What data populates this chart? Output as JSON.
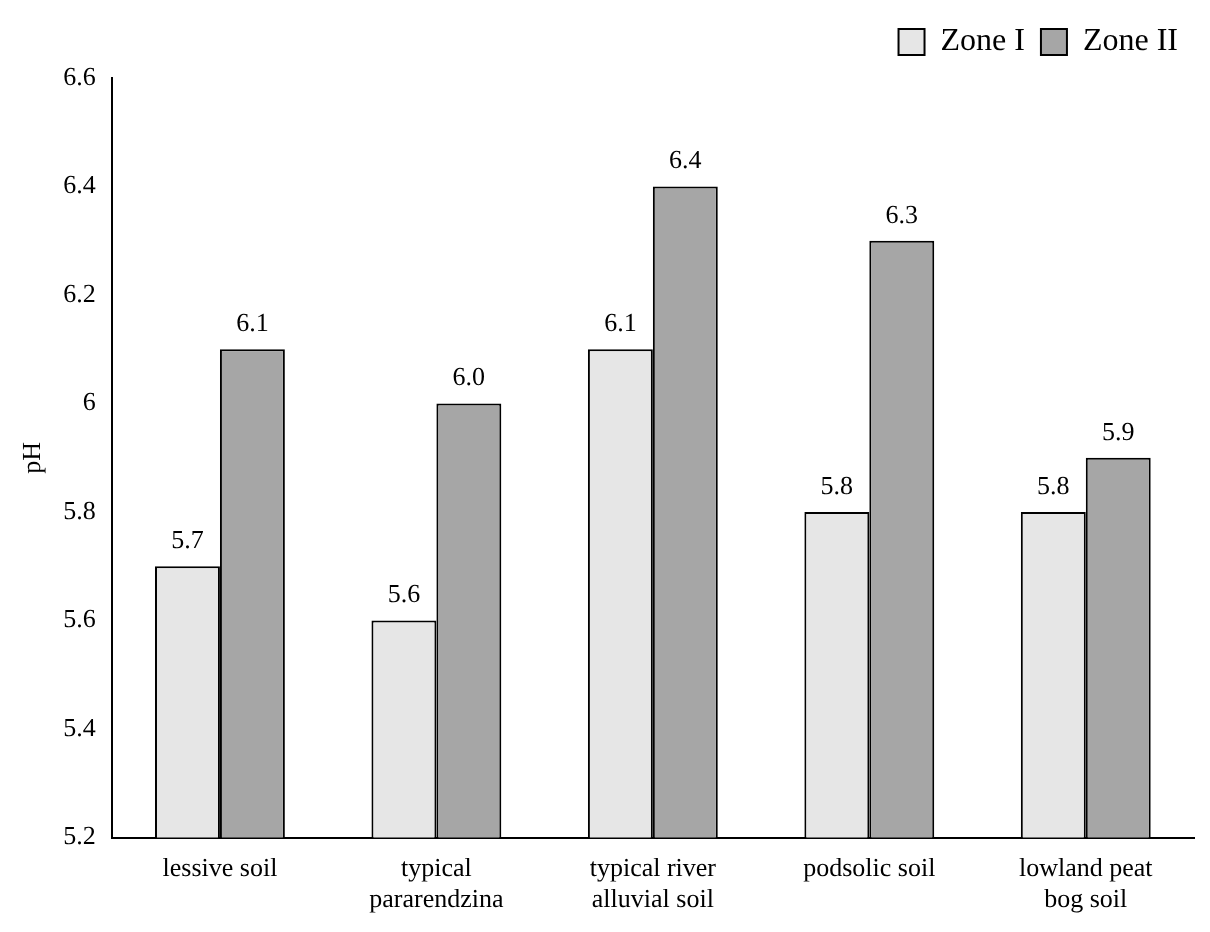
{
  "chart_data": {
    "type": "bar",
    "ylabel": "pH",
    "categories": [
      "lessive soil",
      "typical pararendzina",
      "typical river alluvial soil",
      "podsolic soil",
      "lowland peat bog soil"
    ],
    "series": [
      {
        "name": "Zone I",
        "color": "#e6e6e6",
        "values": [
          5.7,
          5.6,
          6.1,
          5.8,
          5.8
        ],
        "value_labels": [
          "5.7",
          "5.6",
          "6.1",
          "5.8",
          "5.8"
        ]
      },
      {
        "name": "Zone II",
        "color": "#a6a6a6",
        "values": [
          6.1,
          6.0,
          6.4,
          6.3,
          5.9
        ],
        "value_labels": [
          "6.1",
          "6.0",
          "6.4",
          "6.3",
          "5.9"
        ]
      }
    ],
    "ylim": [
      5.2,
      6.6
    ],
    "yticks": [
      5.2,
      5.4,
      5.6,
      5.8,
      6,
      6.2,
      6.4,
      6.6
    ],
    "grid": false,
    "legend": "top right"
  }
}
